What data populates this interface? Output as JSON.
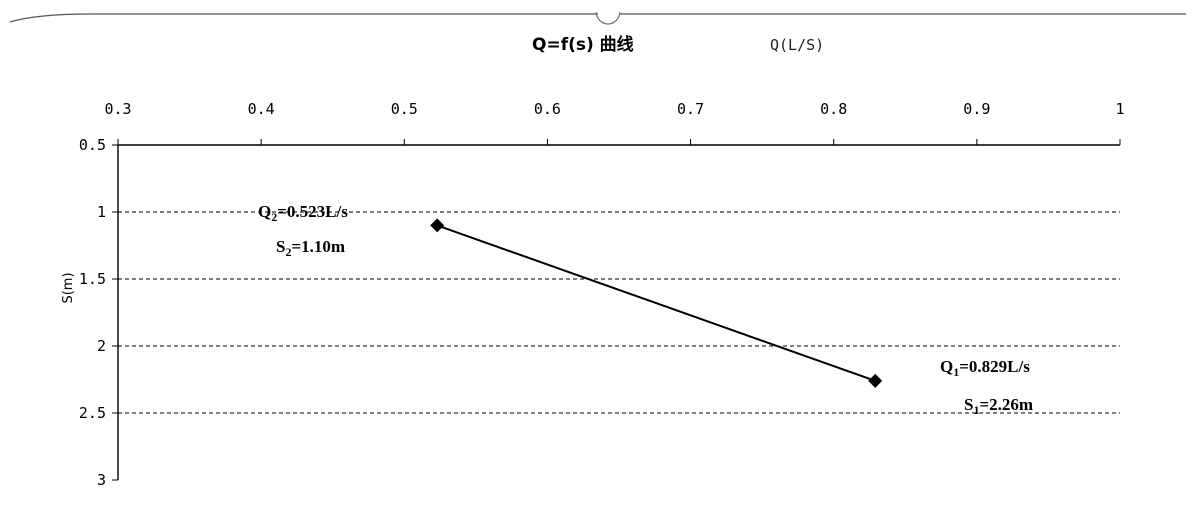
{
  "chart_data": {
    "type": "line",
    "title": "Q=f(s) 曲线",
    "xlabel": "Q(L/S)",
    "ylabel": "S(m)",
    "xlim": [
      0.3,
      1
    ],
    "ylim": [
      0.5,
      3
    ],
    "x_ticks": [
      "0.3",
      "0.4",
      "0.5",
      "0.6",
      "0.7",
      "0.8",
      "0.9",
      "1"
    ],
    "y_ticks": [
      "0.5",
      "1",
      "1.5",
      "2",
      "2.5",
      "3"
    ],
    "y_inverted": true,
    "x_axis_position": "top",
    "grid": "horizontal dashed",
    "series": [
      {
        "x": [
          0.523,
          0.829
        ],
        "y": [
          1.1,
          2.26
        ],
        "marker": "diamond",
        "color": "#000000"
      }
    ],
    "annotations": [
      {
        "q_label": "Q",
        "q_sub": "2",
        "q_value": "=0.523L/s",
        "s_label": "S",
        "s_sub": "2",
        "s_value": "=1.10m"
      },
      {
        "q_label": "Q",
        "q_sub": "1",
        "q_value": "=0.829L/s",
        "s_label": "S",
        "s_sub": "1",
        "s_value": "=2.26m"
      }
    ]
  }
}
